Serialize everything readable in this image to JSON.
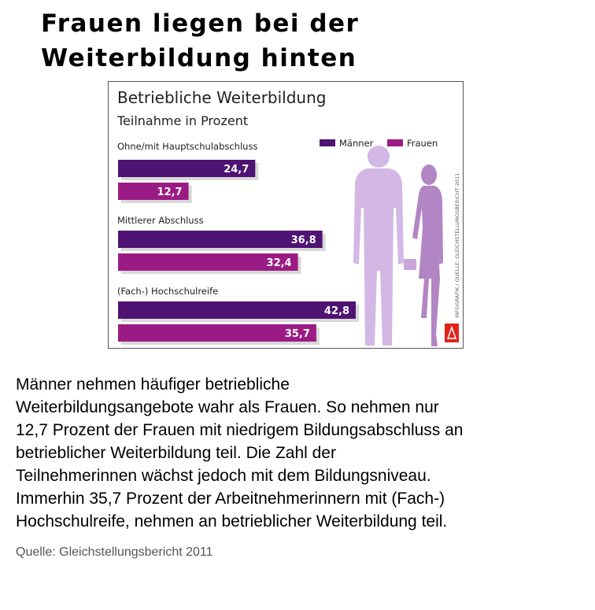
{
  "headline": [
    "Frauen liegen bei der",
    "Weiterbildung hinten"
  ],
  "body_text": [
    "Männer nehmen häufiger betriebliche",
    "Weiterbildungsangebote wahr als Frauen. So nehmen nur",
    "12,7 Prozent der Frauen mit niedrigem Bildungsabschluss an",
    "betrieblicher Weiterbildung teil. Die Zahl der",
    "Teilnehmerinnen wächst jedoch mit dem Bildungsniveau.",
    "Immerhin 35,7 Prozent der Arbeitnehmerinnern mit (Fach-)",
    "Hochschulreife, nehmen an betrieblicher Weiterbildung teil."
  ],
  "source": "Quelle: Gleichstellungsbericht 2011",
  "colors": {
    "maenner": "#4e1373",
    "frauen": "#9b1b85",
    "silhouette_man": "#d3b7e4",
    "silhouette_woman": "#b285c4",
    "logo": "#e0231c"
  },
  "chart_data": {
    "type": "bar",
    "orientation": "horizontal",
    "title": "Betriebliche Weiterbildung",
    "subtitle": "Teilnahme in Prozent",
    "categories": [
      "Ohne/mit Hauptschulabschluss",
      "Mittlerer Abschluss",
      "(Fach-) Hochschulreife"
    ],
    "series": [
      {
        "name": "Männer",
        "color": "#4e1373",
        "values": [
          24.7,
          36.8,
          42.8
        ],
        "labels": [
          "24,7",
          "36,8",
          "42,8"
        ]
      },
      {
        "name": "Frauen",
        "color": "#9b1b85",
        "values": [
          12.7,
          32.4,
          35.7
        ],
        "labels": [
          "12,7",
          "32,4",
          "35,7"
        ]
      }
    ],
    "legend_position": "top-right",
    "credit": "INFOGRAFIK / QUELLE: GLEICHSTELLUNGSBERICHT 2011"
  }
}
